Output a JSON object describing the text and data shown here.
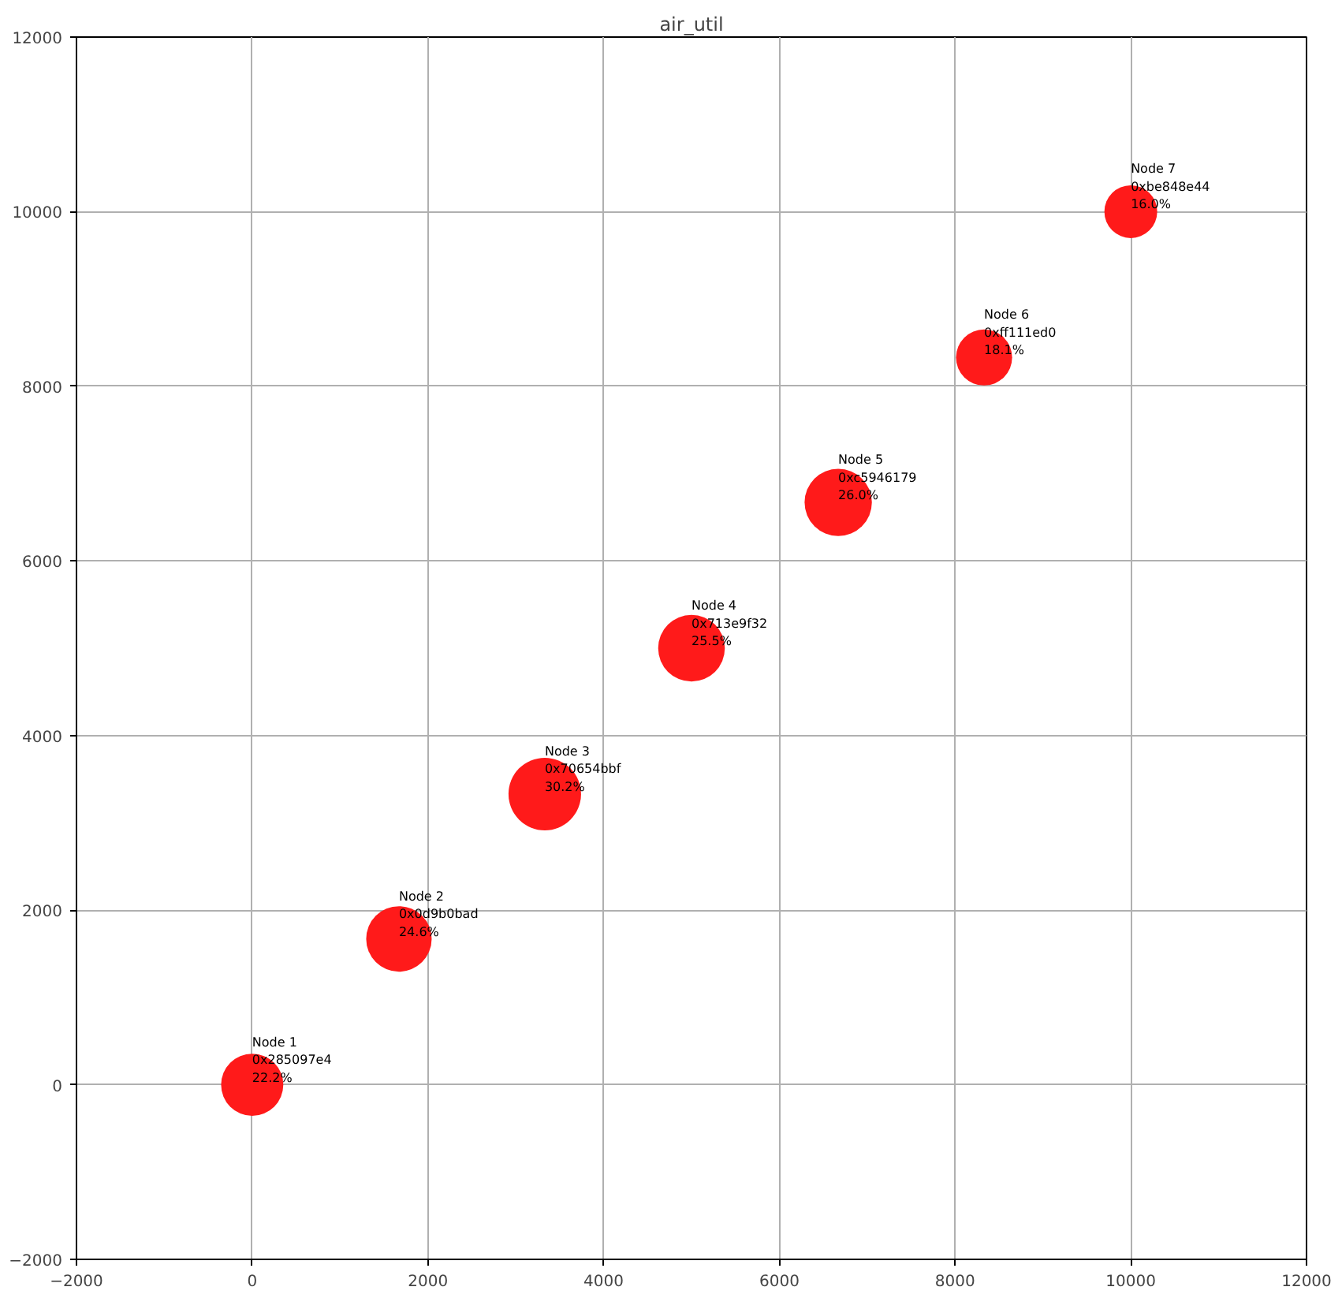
{
  "chart_data": {
    "type": "bubble",
    "title": "air_util",
    "x": [
      0,
      1670,
      3330,
      5000,
      6670,
      8330,
      10000
    ],
    "values": [
      0,
      1670,
      3330,
      5000,
      6670,
      8330,
      10000
    ],
    "sizes": [
      0.735,
      0.815,
      1,
      0.844,
      0.861,
      0.599,
      0.53
    ],
    "color": "#ff1a1a",
    "marker": "circle",
    "xlim": [
      -2000,
      12000
    ],
    "ylim": [
      -2000,
      12000
    ],
    "xticks": [
      -2000,
      0,
      2000,
      4000,
      6000,
      8000,
      10000,
      12000
    ],
    "yticks": [
      -2000,
      0,
      2000,
      4000,
      6000,
      8000,
      10000,
      12000
    ],
    "grid": true,
    "annotations": [
      {
        "text": "Node 1\n0x285097e4\n22.2%",
        "x": 0,
        "y": 0
      },
      {
        "text": "Node 2\n0x0d9b0bad\n24.6%",
        "x": 1670,
        "y": 1670
      },
      {
        "text": "Node 3\n0x70654bbf\n30.2%",
        "x": 3330,
        "y": 3330
      },
      {
        "text": "Node 4\n0x713e9f32\n25.5%",
        "x": 5000,
        "y": 5000
      },
      {
        "text": "Node 5\n0xc5946179\n26.0%",
        "x": 6670,
        "y": 6670
      },
      {
        "text": "Node 6\n0xff111ed0\n18.1%",
        "x": 8330,
        "y": 8330
      },
      {
        "text": "Node 7\n0xbe848e44\n16.0%",
        "x": 10000,
        "y": 10000
      }
    ]
  }
}
